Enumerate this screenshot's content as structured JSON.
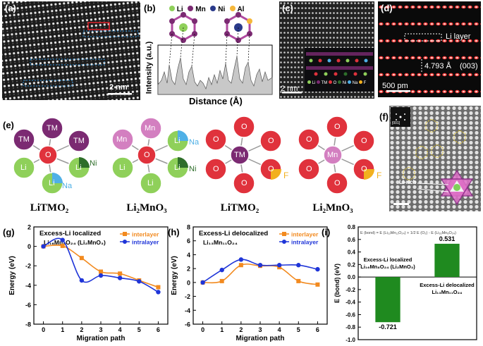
{
  "panel_a": {
    "label": "(a)",
    "scalebar": "2 nm"
  },
  "panel_b": {
    "label": "(b)",
    "legend": [
      "Li",
      "Mn",
      "Ni",
      "Al"
    ],
    "ylabel": "Intensity (a.u.)",
    "xlabel": "Distance (Å)"
  },
  "panel_c": {
    "label": "(c)",
    "scalebar": "2 nm",
    "legend": [
      "Li",
      "TM",
      "O",
      "Ni",
      "Na",
      "F"
    ]
  },
  "panel_d": {
    "label": "(d)",
    "layer": "Li layer",
    "spacing": "4.793 Å",
    "plane": "(003)",
    "scalebar": "500 pm"
  },
  "panel_e": {
    "label": "(e)",
    "structures": [
      {
        "name": "LiTMO₂",
        "center": "O",
        "neighbors": [
          "TM",
          "TM",
          "TM",
          "Li",
          "Li",
          "Li"
        ],
        "extras": [
          "Na",
          "Ni"
        ]
      },
      {
        "name": "Li₂MnO₃",
        "center": "O",
        "neighbors": [
          "Mn",
          "Mn",
          "Li",
          "Li",
          "Li",
          "Li"
        ],
        "extras": [
          "Na",
          "Ni"
        ]
      },
      {
        "name": "LiTMO₂",
        "center": "TM",
        "neighbors": [
          "O",
          "O",
          "O",
          "O",
          "O",
          "O"
        ],
        "extras": [
          "F"
        ]
      },
      {
        "name": "Li₂MnO₃",
        "center": "Mn",
        "neighbors": [
          "O",
          "O",
          "O",
          "O",
          "O",
          "O"
        ],
        "extras": [
          "F"
        ]
      }
    ]
  },
  "panel_f": {
    "label": "(f)",
    "inset": "[001]",
    "annotation": "Li-rich"
  },
  "chart_data": [
    {
      "id": "g",
      "type": "line",
      "label": "(g)",
      "title": "Excess-Li localized",
      "subtitle": "Li₁₆Mn₈O₂₄ (Li₂MnO₃)",
      "xlabel": "Migration path",
      "ylabel": "Energy (eV)",
      "xlim": [
        -0.5,
        6.5
      ],
      "ylim": [
        -8,
        2
      ],
      "xticks": [
        "0",
        "1",
        "2",
        "3",
        "4",
        "5",
        "6"
      ],
      "yticks": [
        "2",
        "0",
        "-2",
        "-4",
        "-6",
        "-8"
      ],
      "series": [
        {
          "name": "interlayer",
          "color": "#f28a1f",
          "marker": "square",
          "x": [
            0,
            1,
            2,
            3,
            4,
            5,
            6
          ],
          "y": [
            0,
            0.05,
            -1.2,
            -2.6,
            -2.8,
            -3.5,
            -4.2
          ]
        },
        {
          "name": "intralayer",
          "color": "#1f35d8",
          "marker": "circle",
          "x": [
            0,
            1,
            2,
            3,
            4,
            5,
            6
          ],
          "y": [
            0,
            0.65,
            -3.5,
            -3.0,
            -3.25,
            -3.6,
            -4.7
          ]
        }
      ]
    },
    {
      "id": "h",
      "type": "line",
      "label": "(h)",
      "title": "Excess-Li delocalized",
      "subtitle": "Li₁₃Mn₁₁O₂₄",
      "xlabel": "Migration path",
      "ylabel": "Energy (eV)",
      "xlim": [
        -0.5,
        6.5
      ],
      "ylim": [
        -6,
        8
      ],
      "xticks": [
        "0",
        "1",
        "2",
        "3",
        "4",
        "5",
        "6"
      ],
      "yticks": [
        "8",
        "6",
        "4",
        "2",
        "0",
        "-2",
        "-4",
        "-6"
      ],
      "series": [
        {
          "name": "interlayer",
          "color": "#f28a1f",
          "marker": "square",
          "x": [
            0,
            1,
            2,
            3,
            4,
            5,
            6
          ],
          "y": [
            0,
            0.2,
            2.5,
            2.4,
            2.2,
            0.2,
            -0.3
          ]
        },
        {
          "name": "intralayer",
          "color": "#1f35d8",
          "marker": "circle",
          "x": [
            0,
            1,
            2,
            3,
            4,
            5,
            6
          ],
          "y": [
            0,
            1.8,
            3.3,
            2.5,
            2.5,
            2.5,
            1.9
          ]
        }
      ]
    },
    {
      "id": "i",
      "type": "bar",
      "label": "(i)",
      "formula": "E (bond) = E (Li₁₃Mn₁₁O₂₄) + 1/2 E (O₂) - E (Li₁₆Mn₈O₂₄)",
      "ylabel": "E (bond) (eV)",
      "ylim": [
        -1.0,
        0.8
      ],
      "yticks": [
        "0.8",
        "0.6",
        "0.4",
        "0.2",
        "0.0",
        "-0.2",
        "-0.4",
        "-0.6",
        "-0.8",
        "-1.0"
      ],
      "categories": [
        "Excess-Li localized Li₁₆Mn₈O₂₄ (Li₂MnO₃)",
        "Excess-Li delocalized Li₁₃Mn₁₁O₂₄"
      ],
      "cat_lines": [
        [
          "Excess-Li localized",
          "Li₁₆Mn₈O₂₄ (Li₂MnO₃)"
        ],
        [
          "Excess-Li delocalized",
          "Li₁₃Mn₁₁O₂₄"
        ]
      ],
      "values": [
        -0.721,
        0.531
      ],
      "value_labels": [
        "-0.721",
        "0.531"
      ],
      "color": "#1f8a1f"
    }
  ],
  "colors": {
    "li": "#8fd05a",
    "o": "#e0323c",
    "tm": "#7b2a72",
    "mn": "#d37fc0",
    "na": "#4fb0e6",
    "ni": "#2e6e2a",
    "f": "#f2b01e",
    "al": "#f5b73a"
  }
}
